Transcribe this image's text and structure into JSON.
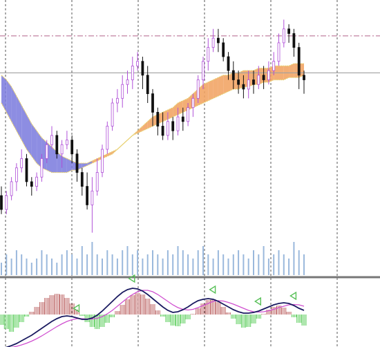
{
  "colors": {
    "background": "#ffffff",
    "grid": "#555555",
    "ichimoku_bear_cloud": "#6a6ad8",
    "ichimoku_bull_cloud": "#f0944a",
    "cloud_edge": "#e8d070",
    "candle_body": "#111111",
    "candle_wick_up": "#b050d8",
    "candle_wick_down": "#111111",
    "volume": "#9ab8dc",
    "dashdot_line": "#c080a0",
    "horizontal_line": "#a0a0a0",
    "separator": "#777777",
    "hist_positive": "#b85a5a",
    "hist_negative": "#4cc94c",
    "macd_line": "#1a1a60",
    "signal_line": "#d050d0",
    "arrow_marker": "#58c058"
  },
  "chart_data": [
    {
      "type": "candlestick",
      "panel": "price",
      "grid": true,
      "ylim": [
        0,
        100
      ],
      "reference_lines": [
        {
          "style": "dash-dot",
          "y": 89
        },
        {
          "style": "solid",
          "y": 73
        }
      ],
      "candles": [
        [
          20,
          14,
          24,
          12
        ],
        [
          14,
          20,
          22,
          12
        ],
        [
          20,
          26,
          28,
          18
        ],
        [
          26,
          32,
          34,
          22
        ],
        [
          32,
          36,
          40,
          30
        ],
        [
          36,
          26,
          38,
          24
        ],
        [
          26,
          24,
          28,
          20
        ],
        [
          24,
          28,
          30,
          22
        ],
        [
          28,
          36,
          38,
          26
        ],
        [
          36,
          42,
          44,
          34
        ],
        [
          42,
          46,
          50,
          40
        ],
        [
          46,
          38,
          48,
          36
        ],
        [
          38,
          42,
          44,
          32
        ],
        [
          42,
          44,
          48,
          40
        ],
        [
          44,
          38,
          46,
          34
        ],
        [
          38,
          30,
          40,
          26
        ],
        [
          30,
          24,
          32,
          20
        ],
        [
          24,
          16,
          30,
          14
        ],
        [
          16,
          22,
          28,
          4
        ],
        [
          22,
          30,
          36,
          20
        ],
        [
          30,
          40,
          42,
          28
        ],
        [
          40,
          50,
          52,
          38
        ],
        [
          50,
          60,
          62,
          48
        ],
        [
          60,
          62,
          66,
          56
        ],
        [
          62,
          68,
          72,
          58
        ],
        [
          68,
          70,
          74,
          64
        ],
        [
          70,
          76,
          80,
          66
        ],
        [
          76,
          78,
          82,
          74
        ],
        [
          78,
          72,
          80,
          66
        ],
        [
          72,
          64,
          76,
          60
        ],
        [
          64,
          56,
          66,
          50
        ],
        [
          56,
          50,
          58,
          46
        ],
        [
          50,
          46,
          56,
          44
        ],
        [
          46,
          52,
          56,
          44
        ],
        [
          52,
          48,
          54,
          44
        ],
        [
          48,
          54,
          58,
          46
        ],
        [
          54,
          52,
          58,
          48
        ],
        [
          52,
          58,
          60,
          50
        ],
        [
          58,
          62,
          64,
          54
        ],
        [
          62,
          70,
          72,
          60
        ],
        [
          70,
          78,
          80,
          66
        ],
        [
          78,
          84,
          88,
          74
        ],
        [
          84,
          88,
          92,
          82
        ],
        [
          88,
          86,
          92,
          82
        ],
        [
          86,
          80,
          88,
          78
        ],
        [
          80,
          74,
          82,
          70
        ],
        [
          74,
          70,
          78,
          66
        ],
        [
          70,
          68,
          74,
          64
        ],
        [
          68,
          66,
          72,
          62
        ],
        [
          66,
          70,
          74,
          62
        ],
        [
          70,
          68,
          74,
          64
        ],
        [
          68,
          72,
          76,
          66
        ],
        [
          72,
          70,
          76,
          66
        ],
        [
          70,
          74,
          78,
          68
        ],
        [
          74,
          78,
          82,
          72
        ],
        [
          78,
          86,
          90,
          76
        ],
        [
          86,
          92,
          96,
          84
        ],
        [
          92,
          90,
          94,
          86
        ],
        [
          90,
          84,
          92,
          80
        ],
        [
          84,
          72,
          86,
          66
        ],
        [
          72,
          70,
          74,
          64
        ]
      ],
      "cloud": {
        "upper": [
          72,
          70,
          67,
          63,
          59,
          55,
          51,
          48,
          45,
          43,
          41,
          39,
          37,
          36,
          35,
          34,
          34,
          34,
          35,
          36,
          37,
          38,
          39,
          40,
          42,
          44,
          46,
          48,
          50,
          52,
          54,
          55,
          56,
          57,
          58,
          60,
          61,
          62,
          64,
          66,
          68,
          69,
          70,
          71,
          72,
          72,
          73,
          73,
          74,
          74,
          74,
          75,
          75,
          75,
          76,
          76,
          76,
          76,
          77,
          77,
          77
        ],
        "lower": [
          60,
          56,
          52,
          48,
          44,
          40,
          37,
          34,
          32,
          31,
          30,
          30,
          30,
          30,
          31,
          31,
          32,
          33,
          34,
          35,
          36,
          37,
          38,
          40,
          42,
          44,
          46,
          47,
          48,
          49,
          50,
          51,
          52,
          53,
          54,
          55,
          56,
          57,
          58,
          59,
          60,
          61,
          62,
          63,
          64,
          65,
          66,
          66,
          67,
          67,
          68,
          68,
          69,
          69,
          70,
          70,
          70,
          71,
          71,
          71,
          72
        ],
        "bull_from_index": 18
      },
      "volume": [
        3,
        5,
        4,
        6,
        5,
        4,
        3,
        4,
        6,
        5,
        4,
        3,
        5,
        6,
        5,
        4,
        7,
        5,
        8,
        5,
        4,
        6,
        5,
        4,
        6,
        7,
        5,
        6,
        4,
        5,
        6,
        5,
        4,
        6,
        5,
        7,
        6,
        5,
        4,
        6,
        7,
        5,
        4,
        6,
        5,
        4,
        5,
        6,
        5,
        4,
        6,
        5,
        7,
        4,
        5,
        6,
        5,
        4,
        8,
        6,
        5
      ]
    },
    {
      "type": "bar",
      "panel": "oscillator",
      "grid": true,
      "ylim": [
        -1,
        1
      ],
      "histogram": [
        -0.3,
        -0.42,
        -0.5,
        -0.38,
        -0.22,
        -0.06,
        0.08,
        0.22,
        0.36,
        0.48,
        0.56,
        0.6,
        0.58,
        0.48,
        0.32,
        0.14,
        -0.04,
        -0.22,
        -0.36,
        -0.42,
        -0.36,
        -0.24,
        -0.08,
        0.1,
        0.28,
        0.44,
        0.56,
        0.62,
        0.58,
        0.46,
        0.3,
        0.12,
        -0.06,
        -0.22,
        -0.32,
        -0.34,
        -0.26,
        -0.14,
        0.02,
        0.18,
        0.32,
        0.42,
        0.44,
        0.36,
        0.22,
        0.06,
        -0.12,
        -0.28,
        -0.38,
        -0.36,
        -0.26,
        -0.12,
        0.02,
        0.14,
        0.22,
        0.26,
        0.2,
        0.08,
        -0.08,
        -0.24,
        -0.32
      ],
      "macd": [
        -1.0,
        -0.95,
        -0.9,
        -0.84,
        -0.76,
        -0.68,
        -0.6,
        -0.5,
        -0.4,
        -0.3,
        -0.2,
        -0.12,
        -0.06,
        -0.04,
        -0.06,
        -0.1,
        -0.14,
        -0.14,
        -0.1,
        -0.02,
        0.1,
        0.24,
        0.38,
        0.52,
        0.64,
        0.72,
        0.76,
        0.74,
        0.68,
        0.58,
        0.46,
        0.34,
        0.22,
        0.12,
        0.06,
        0.08,
        0.14,
        0.22,
        0.32,
        0.4,
        0.44,
        0.46,
        0.44,
        0.38,
        0.3,
        0.22,
        0.14,
        0.08,
        0.04,
        0.04,
        0.06,
        0.1,
        0.16,
        0.22,
        0.28,
        0.32,
        0.34,
        0.32,
        0.26,
        0.18,
        0.12
      ],
      "signal": [
        -1.0,
        -0.98,
        -0.95,
        -0.92,
        -0.88,
        -0.83,
        -0.77,
        -0.7,
        -0.62,
        -0.53,
        -0.44,
        -0.35,
        -0.27,
        -0.2,
        -0.15,
        -0.12,
        -0.12,
        -0.13,
        -0.13,
        -0.11,
        -0.06,
        0.02,
        0.12,
        0.24,
        0.36,
        0.48,
        0.58,
        0.66,
        0.7,
        0.7,
        0.66,
        0.58,
        0.48,
        0.38,
        0.28,
        0.2,
        0.15,
        0.13,
        0.15,
        0.2,
        0.26,
        0.32,
        0.38,
        0.4,
        0.39,
        0.35,
        0.3,
        0.24,
        0.18,
        0.12,
        0.08,
        0.07,
        0.08,
        0.11,
        0.15,
        0.2,
        0.24,
        0.28,
        0.29,
        0.28,
        0.24
      ],
      "markers": [
        {
          "index": 15
        },
        {
          "index": 26
        },
        {
          "index": 42
        },
        {
          "index": 51
        },
        {
          "index": 58
        }
      ]
    }
  ]
}
